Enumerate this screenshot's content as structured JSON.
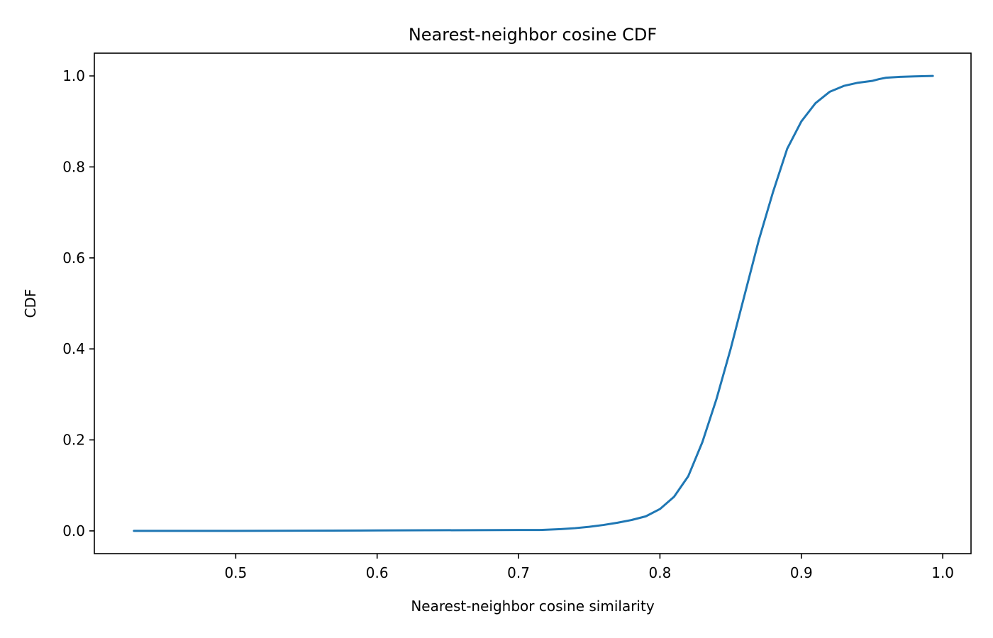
{
  "chart_data": {
    "type": "line",
    "title": "Nearest-neighbor cosine CDF",
    "xlabel": "Nearest-neighbor cosine similarity",
    "ylabel": "CDF",
    "xlim": [
      0.4,
      1.02
    ],
    "ylim": [
      -0.05,
      1.05
    ],
    "xticks": [
      0.5,
      0.6,
      0.7,
      0.8,
      0.9,
      1.0
    ],
    "xtick_labels": [
      "0.5",
      "0.6",
      "0.7",
      "0.8",
      "0.9",
      "1.0"
    ],
    "yticks": [
      0.0,
      0.2,
      0.4,
      0.6,
      0.8,
      1.0
    ],
    "ytick_labels": [
      "0.0",
      "0.2",
      "0.4",
      "0.6",
      "0.8",
      "1.0"
    ],
    "grid": false,
    "legend": "none",
    "color": "#1f77b4",
    "series": [
      {
        "x": [
          0.428,
          0.5,
          0.6,
          0.7,
          0.715,
          0.73,
          0.74,
          0.75,
          0.76,
          0.77,
          0.78,
          0.79,
          0.8,
          0.81,
          0.82,
          0.83,
          0.84,
          0.85,
          0.86,
          0.87,
          0.88,
          0.89,
          0.9,
          0.91,
          0.92,
          0.93,
          0.94,
          0.95,
          0.955,
          0.96,
          0.97,
          0.98,
          0.993
        ],
        "y": [
          0.0,
          0.0,
          0.001,
          0.002,
          0.002,
          0.004,
          0.006,
          0.009,
          0.013,
          0.018,
          0.024,
          0.032,
          0.048,
          0.075,
          0.12,
          0.195,
          0.29,
          0.4,
          0.52,
          0.64,
          0.745,
          0.84,
          0.9,
          0.94,
          0.965,
          0.978,
          0.985,
          0.989,
          0.993,
          0.996,
          0.998,
          0.999,
          1.0
        ]
      }
    ]
  }
}
